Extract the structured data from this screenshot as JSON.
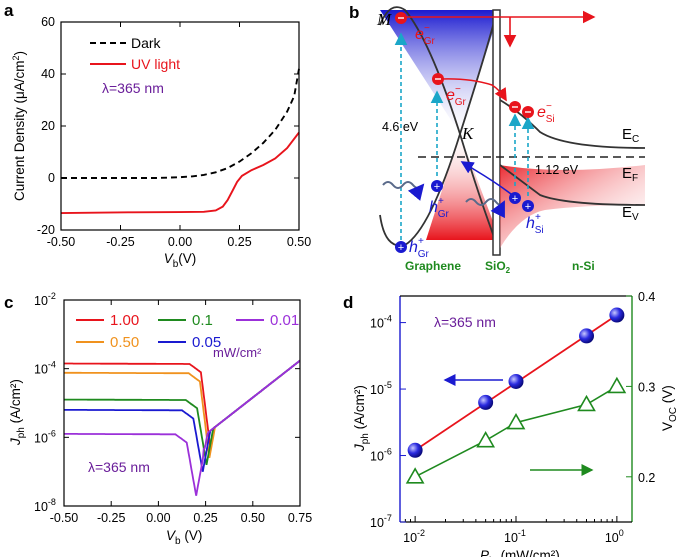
{
  "figure": {
    "panels": [
      "a",
      "b",
      "c",
      "d"
    ]
  },
  "chart_data": [
    {
      "panel": "a",
      "type": "line",
      "xlabel_base": "V",
      "xlabel_sub": "b",
      "xlabel_unit": "(V)",
      "ylabel": "Current Density (μA/cm²)",
      "ylabel_parts": [
        "Current Density (",
        "μ",
        "A/cm",
        "2",
        ")"
      ],
      "xlim": [
        -0.5,
        0.5
      ],
      "ylim": [
        -20,
        60
      ],
      "xticks": [
        -0.5,
        -0.25,
        0,
        0.25,
        0.5
      ],
      "xtick_labels": [
        "-0.50",
        "-0.25",
        "0.00",
        "0.25",
        "0.50"
      ],
      "yticks": [
        -20,
        0,
        20,
        40,
        60
      ],
      "ytick_labels": [
        "-20",
        "0",
        "20",
        "40",
        "60"
      ],
      "annotation": "λ=365 nm",
      "series": [
        {
          "name": "Dark",
          "color": "#000000",
          "dash": true,
          "x": [
            -0.5,
            -0.3,
            -0.1,
            0.0,
            0.05,
            0.1,
            0.15,
            0.2,
            0.25,
            0.3,
            0.35,
            0.4,
            0.45,
            0.48,
            0.5
          ],
          "y": [
            0,
            0,
            0,
            0.3,
            0.6,
            1.2,
            2.2,
            3.8,
            6.3,
            9.5,
            13.5,
            18.5,
            25.5,
            31.5,
            42
          ]
        },
        {
          "name": "UV light",
          "color": "#e8141c",
          "dash": false,
          "x": [
            -0.5,
            -0.2,
            0.0,
            0.1,
            0.15,
            0.18,
            0.2,
            0.22,
            0.24,
            0.26,
            0.3,
            0.35,
            0.4,
            0.45,
            0.5
          ],
          "y": [
            -13.5,
            -13.2,
            -13.1,
            -13.0,
            -12.5,
            -11.0,
            -8.5,
            -5.0,
            -1.5,
            0.8,
            3.0,
            5.0,
            7.5,
            11.5,
            17.5
          ]
        }
      ]
    },
    {
      "panel": "c",
      "type": "line",
      "yscale": "log",
      "xlabel_base": "V",
      "xlabel_sub": "b",
      "xlabel_unit": " (V)",
      "ylabel_base": "J",
      "ylabel_sub": "ph",
      "ylabel_unit": " (A/cm²)",
      "xlim": [
        -0.5,
        0.75
      ],
      "ylim_exp": [
        -8,
        -2
      ],
      "xticks": [
        -0.5,
        -0.25,
        0,
        0.25,
        0.5,
        0.75
      ],
      "xtick_labels": [
        "-0.50",
        "-0.25",
        "0.00",
        "0.25",
        "0.50",
        "0.75"
      ],
      "ytick_exps": [
        -8,
        -6,
        -4,
        -2
      ],
      "ytick_labels": [
        "10",
        "10",
        "10",
        "10"
      ],
      "ytick_exp_labels": [
        "-8",
        "-6",
        "-4",
        "-2"
      ],
      "annotation": "λ=365 nm",
      "unit_label": "mW/cm²",
      "series": [
        {
          "name": "1.00",
          "color": "#e8141c",
          "Jph_exp": -3.85,
          "vmin": 0.275,
          "dip_exp": -6.3
        },
        {
          "name": "0.50",
          "color": "#f0921e",
          "Jph_exp": -4.12,
          "vmin": 0.27,
          "dip_exp": -6.6
        },
        {
          "name": "0.1",
          "color": "#1f8a1f",
          "Jph_exp": -4.9,
          "vmin": 0.255,
          "dip_exp": -6.8
        },
        {
          "name": "0.05",
          "color": "#1a1ad0",
          "Jph_exp": -5.2,
          "vmin": 0.235,
          "dip_exp": -7.0
        },
        {
          "name": "0.01",
          "color": "#9b30d9",
          "Jph_exp": -5.9,
          "vmin": 0.2,
          "dip_exp": -7.7
        }
      ]
    },
    {
      "panel": "d",
      "type": "scatter",
      "xscale": "log",
      "yscale_left": "log",
      "xlabel_base": "P",
      "xlabel_sub": "in",
      "xlabel_unit": " (mW/cm²)",
      "ylabel_left_base": "J",
      "ylabel_left_sub": "ph",
      "ylabel_left_unit": " (A/cm²)",
      "ylabel_right_base": "V",
      "ylabel_right_sub": "OC",
      "ylabel_right_unit": " (V)",
      "xlim_exp": [
        -2.15,
        0.15
      ],
      "xtick_exps": [
        -2,
        -1,
        0
      ],
      "xtick_labels": [
        "10",
        "10",
        "10"
      ],
      "xtick_exp_labels": [
        "-2",
        "-1",
        "0"
      ],
      "ylim_left_exp": [
        -7,
        -3.6
      ],
      "ytick_left_exps": [
        -7,
        -6,
        -5,
        -4
      ],
      "ytick_left_labels": [
        "10",
        "10",
        "10",
        "10"
      ],
      "ytick_left_exp_labels": [
        "-7",
        "-6",
        "-5",
        "-4"
      ],
      "ylim_right": [
        0.15,
        0.4
      ],
      "yticks_right": [
        0.2,
        0.3,
        0.4
      ],
      "ytick_right_labels": [
        "0.2",
        "0.3",
        "0.4"
      ],
      "annotation": "λ=365 nm",
      "series": [
        {
          "name": "Jph",
          "axis": "left",
          "color": "#1a1ad0",
          "fit_color": "#e8141c",
          "x": [
            0.01,
            0.05,
            0.1,
            0.5,
            1.0
          ],
          "y": [
            1.2e-06,
            6.3e-06,
            1.3e-05,
            6.3e-05,
            0.00013
          ]
        },
        {
          "name": "Voc",
          "axis": "right",
          "color": "#1f8a1f",
          "x": [
            0.01,
            0.05,
            0.1,
            0.5,
            1.0
          ],
          "y": [
            0.2,
            0.24,
            0.26,
            0.28,
            0.3
          ]
        }
      ]
    }
  ],
  "panel_a": {
    "letter": "a",
    "legend_dark": "Dark",
    "legend_uv": "UV light",
    "lambda": "λ=365 nm"
  },
  "panel_b": {
    "letter": "b",
    "M": "M",
    "K": "K",
    "e_gr": "e",
    "e_gr_sup": "−",
    "e_gr_sub": "Gr",
    "e_si": "e",
    "e_si_sup": "−",
    "e_si_sub": "Si",
    "h_gr": "h",
    "h_gr_sup": "+",
    "h_gr_sub": "Gr",
    "h_si": "h",
    "h_si_sup": "+",
    "h_si_sub": "Si",
    "energy_46": "4.6 eV",
    "energy_112": "1.12 eV",
    "Ec": "E",
    "Ec_sub": "C",
    "Ef": "E",
    "Ef_sub": "F",
    "Ev": "E",
    "Ev_sub": "V",
    "graphene": "Graphene",
    "sio2": "SiO",
    "sio2_sub": "2",
    "nsi": "n-Si",
    "colors": {
      "blue": "#1a1ad0",
      "red": "#e8141c",
      "green": "#1f8a1f",
      "cyan": "#1aa6c8"
    }
  },
  "panel_c": {
    "letter": "c"
  },
  "panel_d": {
    "letter": "d"
  }
}
